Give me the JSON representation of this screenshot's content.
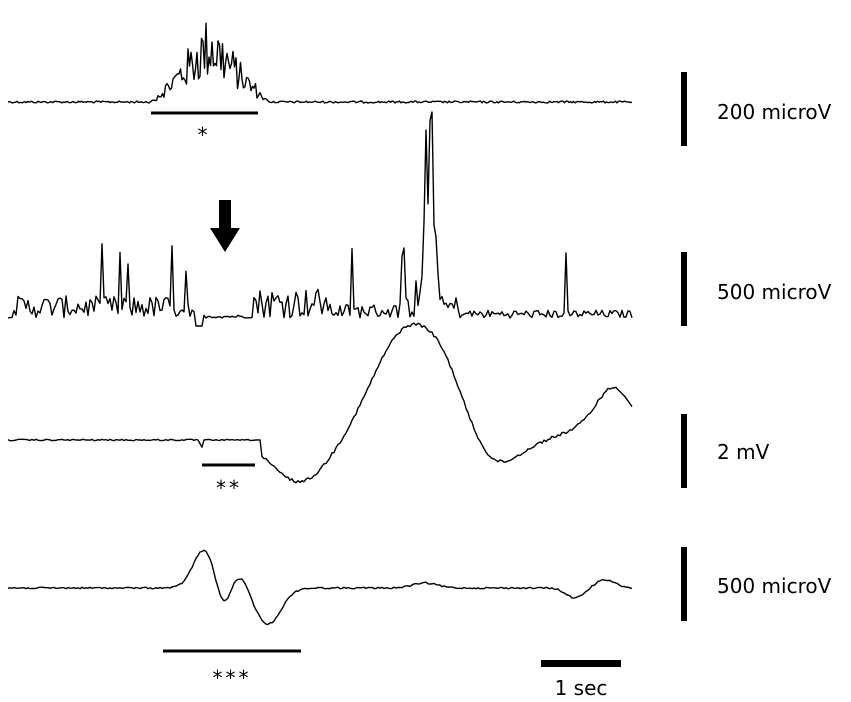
{
  "chart_data": {
    "type": "line",
    "grid": false,
    "traces": [
      {
        "scale_label": "200 microV",
        "marker_label": "*"
      },
      {
        "scale_label": "500 microV",
        "marker_label": "",
        "annotation": "down-arrow"
      },
      {
        "scale_label": "2 mV",
        "marker_label": "**"
      },
      {
        "scale_label": "500 microV",
        "marker_label": "***"
      }
    ],
    "time_scale": {
      "label": "1 sec",
      "value": 1,
      "unit": "sec"
    },
    "colors": {
      "trace": "#000000",
      "background": "#ffffff"
    }
  }
}
